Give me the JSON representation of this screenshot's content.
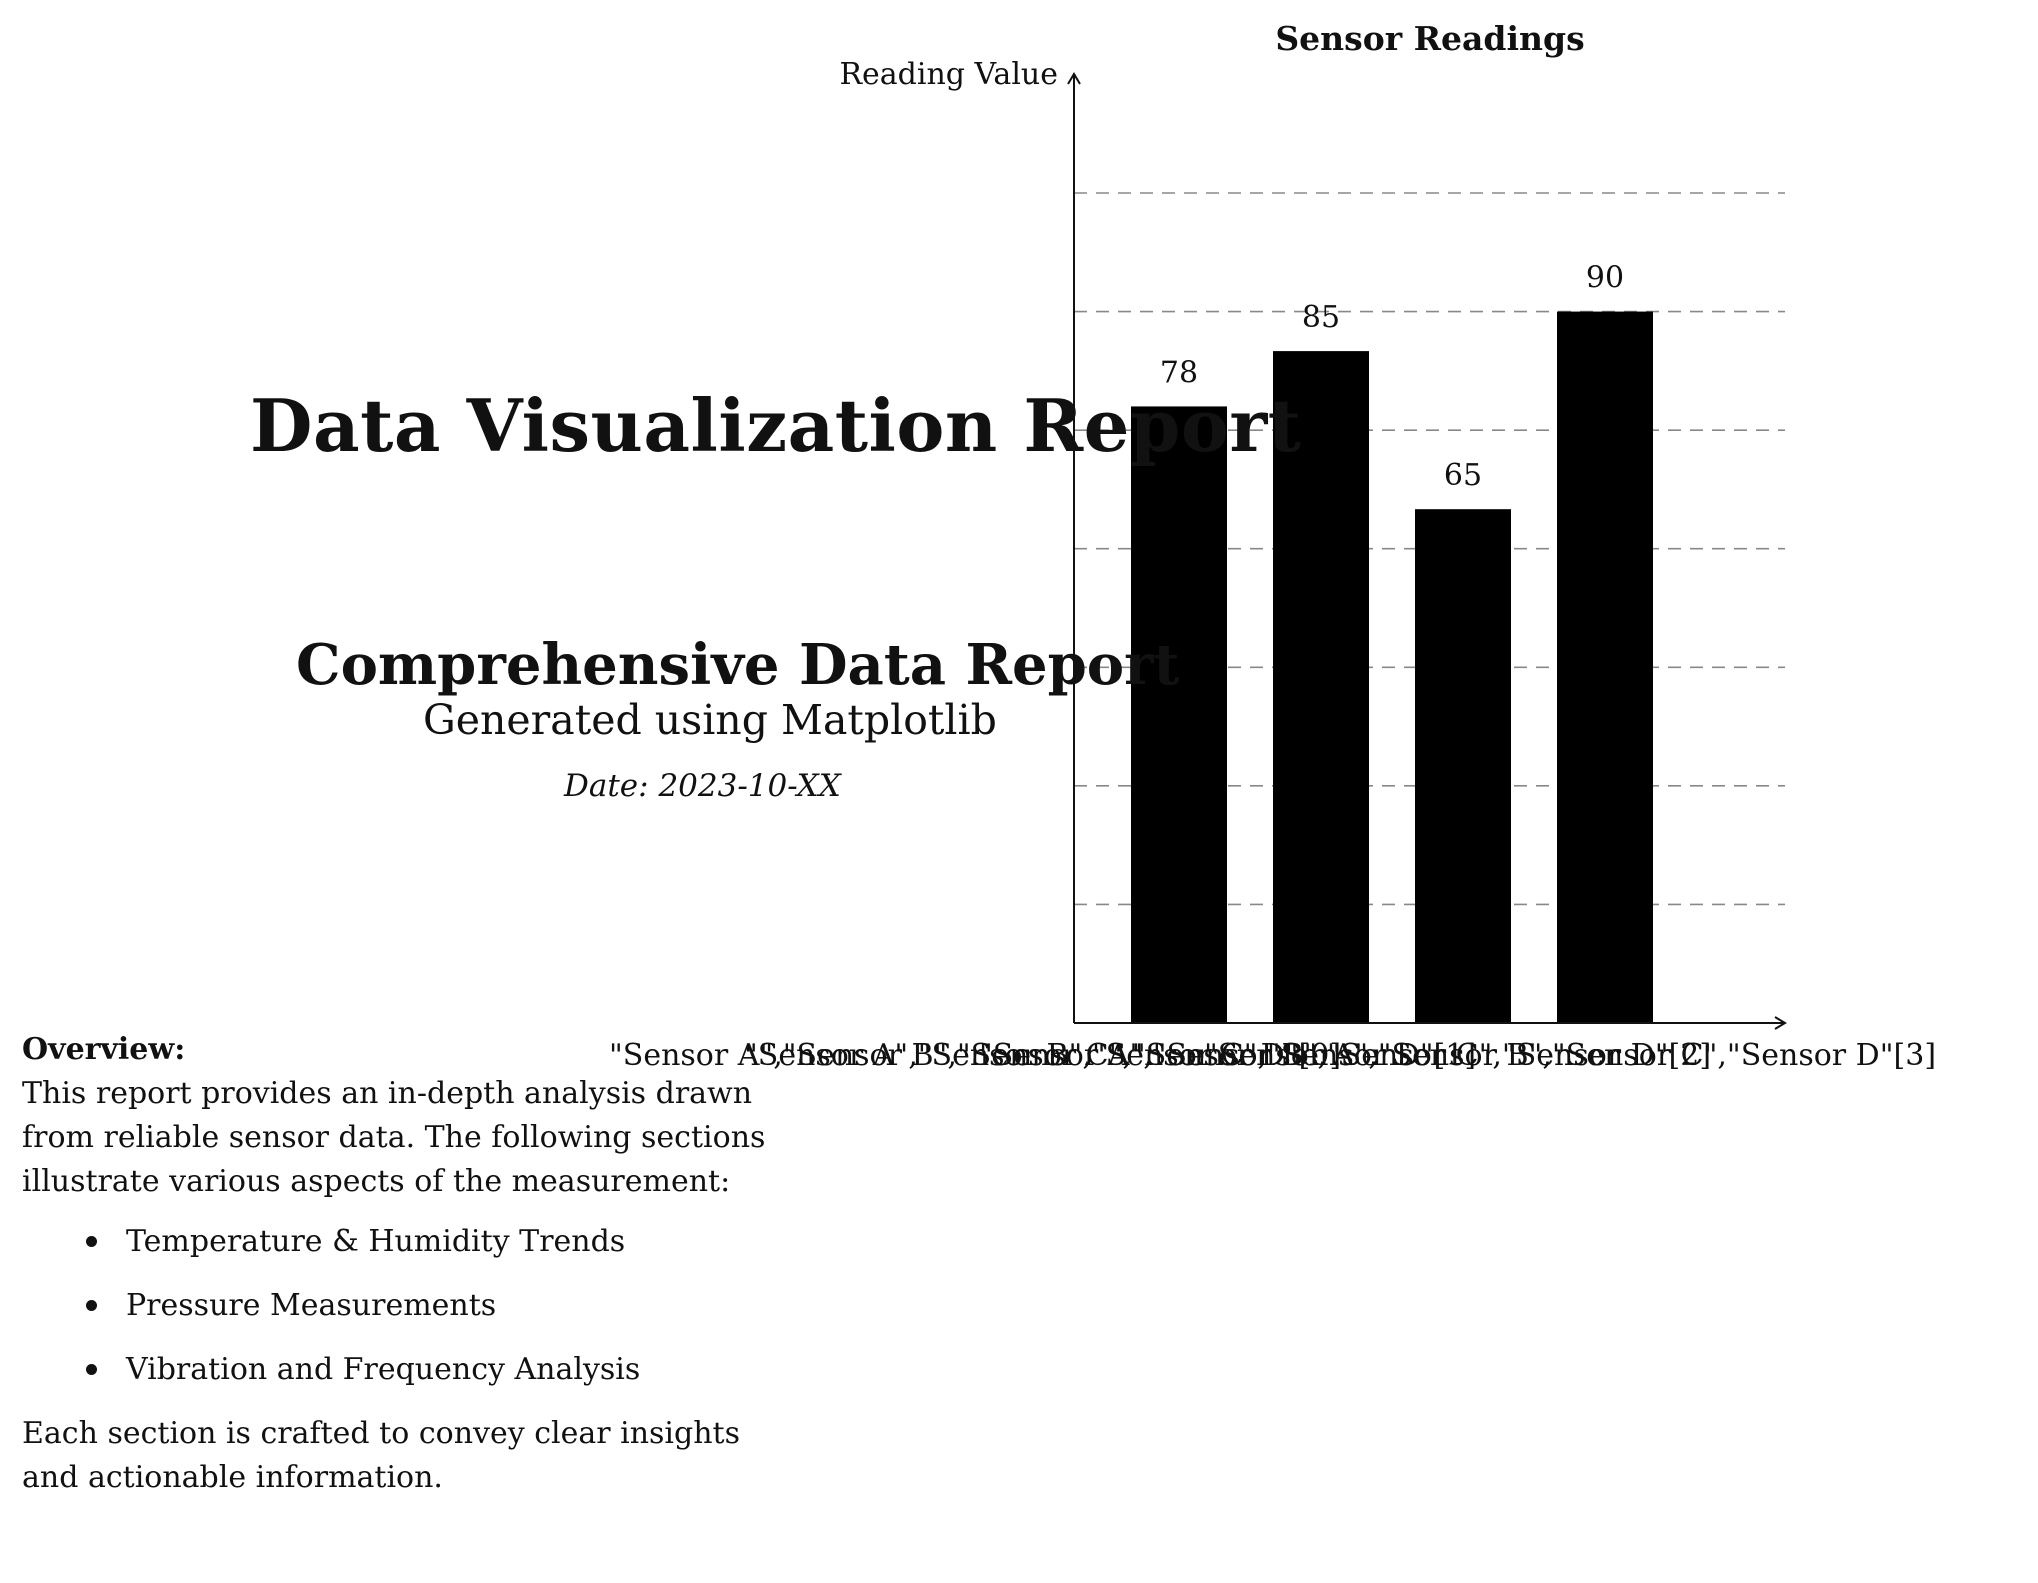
{
  "report": {
    "title": "Data Visualization Report",
    "subtitle": "Comprehensive Data Report",
    "generated": "Generated using Matplotlib",
    "date": "Date: 2023-10-XX"
  },
  "overview": {
    "heading": "Overview:",
    "intro": "This report provides an in-depth analysis drawn from reliable sensor data. The following sections illustrate various aspects of the measurement:",
    "items": [
      "Temperature & Humidity Trends",
      "Pressure Measurements",
      "Vibration and Frequency Analysis"
    ],
    "closing": "Each section is crafted to convey clear insights and actionable information."
  },
  "chart_data": {
    "type": "bar",
    "title": "Sensor Readings",
    "ylabel": "Reading Value",
    "xlabel": "",
    "categories": [
      "Sensor A",
      "Sensor B",
      "Sensor C",
      "Sensor D"
    ],
    "values": [
      78,
      85,
      65,
      90
    ],
    "data_labels": [
      "78",
      "85",
      "65",
      "90"
    ],
    "xtick_labels": [
      "\"Sensor A\",\"Sensor B\",\"Sensor C\",\"Sensor D\"[0]",
      "\"Sensor A\",\"Sensor B\",\"Sensor C\",\"Sensor D\"[1]",
      "\"Sensor A\",\"Sensor B\",\"Sensor C\",\"Sensor D\"[2]",
      "\"Sensor A\",\"Sensor B\",\"Sensor C\",\"Sensor D\"[3]"
    ],
    "ylim": [
      0,
      105
    ],
    "grid": true,
    "bar_color": "#000000",
    "grid_color": "#888888"
  }
}
